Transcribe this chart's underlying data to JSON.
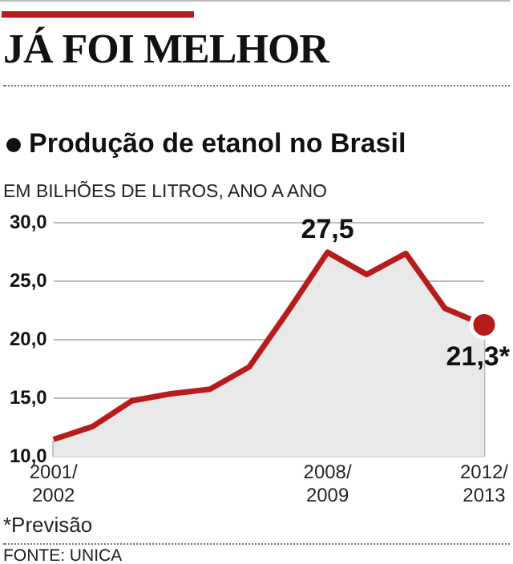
{
  "chart_data": {
    "type": "area",
    "title": "JÁ FOI MELHOR",
    "subtitle": "Produção de etanol no Brasil",
    "ylabel": "EM BILHÕES DE LITROS, ANO A ANO",
    "categories": [
      "2001/2002",
      null,
      null,
      null,
      null,
      null,
      null,
      "2008/2009",
      null,
      null,
      null,
      "2012/2013"
    ],
    "series": [
      {
        "color": "#b71c1c",
        "values": [
          11.5,
          12.6,
          14.8,
          15.4,
          15.8,
          17.7,
          22.5,
          27.5,
          25.6,
          27.4,
          22.7,
          21.3
        ],
        "value_labels": [
          null,
          null,
          null,
          null,
          null,
          null,
          null,
          "27,5",
          null,
          null,
          null,
          "21,3*"
        ]
      }
    ],
    "ylim": [
      10,
      30
    ],
    "yticks": [
      {
        "value": 10,
        "label": "10,0"
      },
      {
        "value": 15,
        "label": "15,0"
      },
      {
        "value": 20,
        "label": "20,0"
      },
      {
        "value": 25,
        "label": "25,0"
      },
      {
        "value": 30,
        "label": "30,0"
      }
    ],
    "grid": "y",
    "legend": false,
    "annotations": [
      "*Previsão",
      "FONTE: UNICA"
    ]
  }
}
